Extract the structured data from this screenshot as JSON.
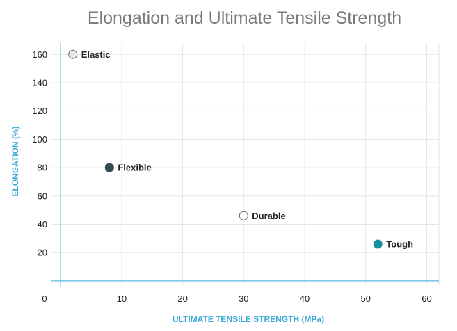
{
  "chart_data": {
    "type": "scatter",
    "title": "Elongation and Ultimate Tensile Strength",
    "xlabel": "ULTIMATE TENSILE STRENGTH (MPa)",
    "ylabel": "ELONGATION (%)",
    "xlim": [
      -1.5,
      62
    ],
    "ylim": [
      -3,
      168
    ],
    "xticks": [
      0,
      10,
      20,
      30,
      40,
      50,
      60
    ],
    "yticks": [
      20,
      40,
      60,
      80,
      100,
      120,
      140,
      160
    ],
    "grid": true,
    "points": [
      {
        "label": "Elastic",
        "x": 2,
        "y": 160,
        "fill": "#e8e8e8",
        "stroke": "#666666"
      },
      {
        "label": "Flexible",
        "x": 8,
        "y": 80,
        "fill": "#37474f",
        "stroke": "#37474f"
      },
      {
        "label": "Durable",
        "x": 30,
        "y": 46,
        "fill": "#ffffff",
        "stroke": "#666666"
      },
      {
        "label": "Tough",
        "x": 52,
        "y": 26,
        "fill": "#14919b",
        "stroke": "#14919b"
      }
    ],
    "colors": {
      "axis": "#5bb8e0",
      "grid": "#e6e6e6",
      "label": "#3aa8d8"
    }
  }
}
